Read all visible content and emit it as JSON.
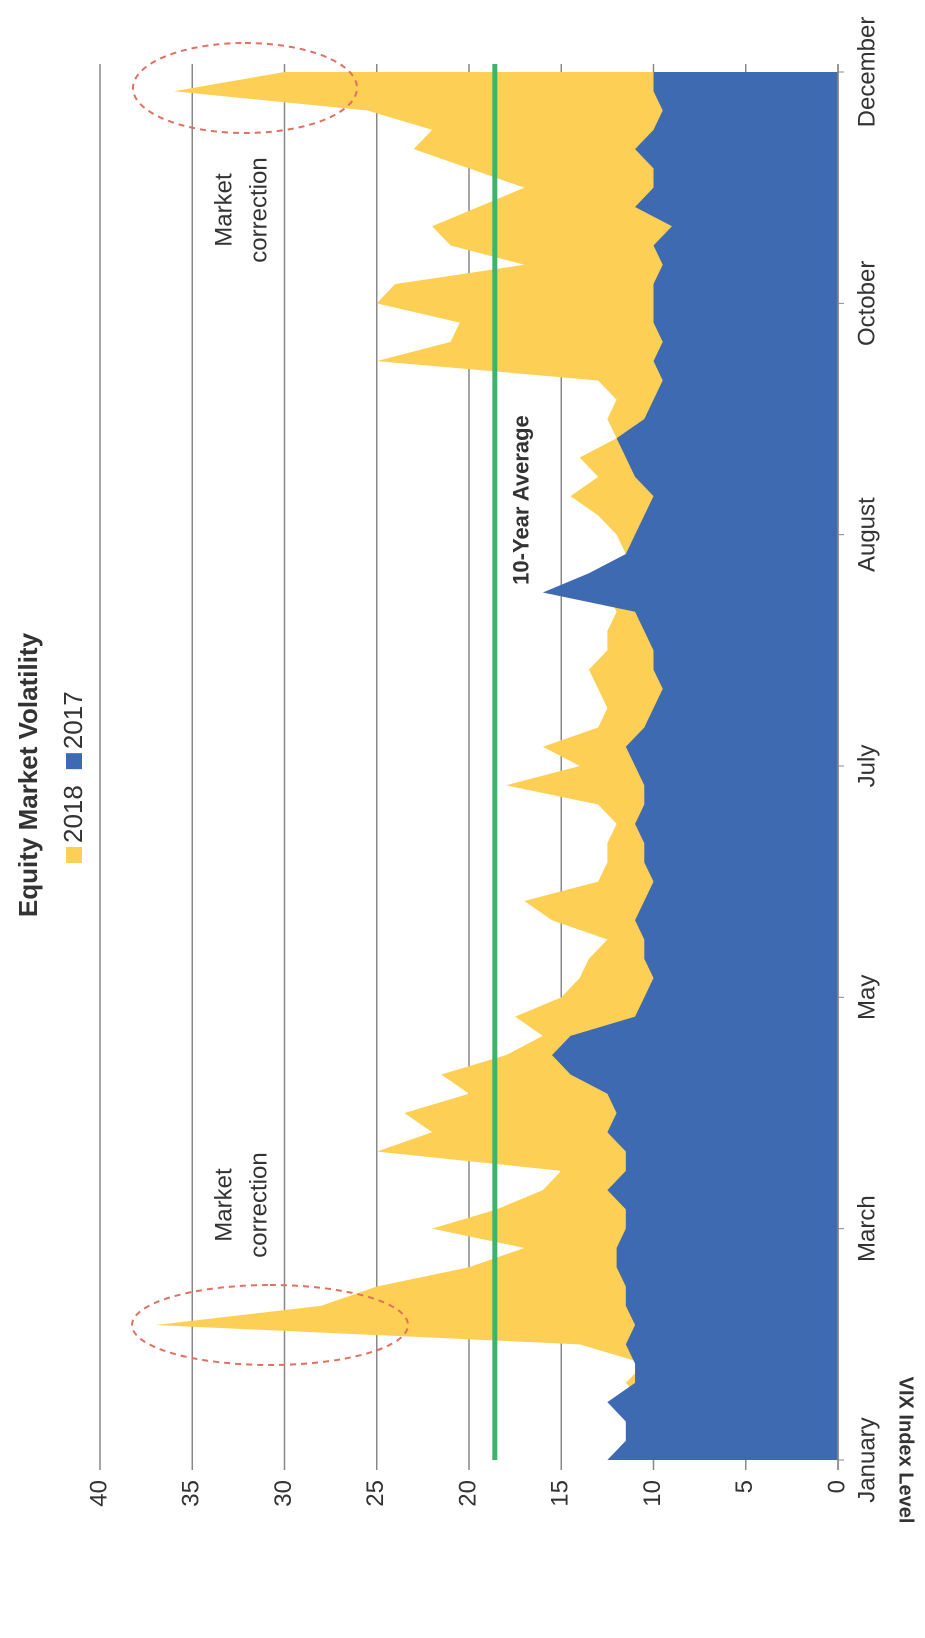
{
  "chart_data": {
    "type": "area",
    "title": "Equity Market Volatility",
    "y_label": "VIX Index Level",
    "categories": [
      "January",
      null,
      null,
      null,
      null,
      null,
      null,
      null,
      null,
      null,
      null,
      null,
      "March",
      null,
      null,
      null,
      null,
      null,
      null,
      null,
      null,
      null,
      null,
      null,
      "May",
      null,
      null,
      null,
      null,
      null,
      null,
      null,
      null,
      null,
      null,
      null,
      "July",
      null,
      null,
      null,
      null,
      null,
      null,
      null,
      null,
      null,
      null,
      null,
      "August",
      null,
      null,
      null,
      null,
      null,
      null,
      null,
      null,
      null,
      null,
      null,
      "October",
      null,
      null,
      null,
      null,
      null,
      null,
      null,
      null,
      null,
      null,
      null,
      "December"
    ],
    "series": [
      {
        "name": "2018",
        "color": "#fdd055",
        "values": [
          11,
          10.5,
          11,
          10.5,
          11.5,
          10.5,
          14,
          37,
          28,
          25,
          20,
          17,
          22,
          18.5,
          16,
          15,
          25,
          22,
          23.5,
          20,
          21.5,
          18,
          16,
          17.5,
          15,
          14,
          13.5,
          12.5,
          15.5,
          17,
          13,
          12.5,
          12.5,
          12,
          13,
          18,
          14,
          16,
          13,
          12.5,
          13,
          13.5,
          12.5,
          12.5,
          12,
          12.5,
          13,
          11.5,
          12,
          13,
          14.5,
          13,
          14,
          12,
          12.5,
          12,
          13,
          25,
          21,
          20.5,
          25,
          24,
          17,
          21,
          22,
          19.5,
          17,
          20,
          23,
          22,
          25.5,
          36,
          30
        ]
      },
      {
        "name": "2017",
        "color": "#3e6ab1",
        "values": [
          12.5,
          11.5,
          11.5,
          12.5,
          11,
          11,
          11.5,
          11,
          11.5,
          11.5,
          12,
          12,
          11.5,
          11.5,
          12.5,
          11.5,
          11.5,
          12.5,
          12,
          12.5,
          14.5,
          15.5,
          14.5,
          11,
          10.5,
          10,
          10.5,
          10.5,
          11,
          10.5,
          10,
          10.5,
          10.5,
          11,
          10.5,
          10.5,
          11,
          11.5,
          10.5,
          10,
          9.5,
          10,
          10,
          10.5,
          11,
          16,
          13.5,
          11.5,
          11,
          10.5,
          10,
          11,
          11.5,
          12,
          10.5,
          10,
          9.5,
          10,
          9.5,
          10,
          10,
          10,
          9.5,
          10,
          9,
          11,
          10,
          10,
          11,
          10,
          9.5,
          10,
          10
        ]
      }
    ],
    "reference_line": {
      "value": 18.6,
      "label": "10-Year Average",
      "color": "#3db36b"
    },
    "annotations": [
      {
        "lines": [
          "Market",
          "correction"
        ],
        "at": 7
      },
      {
        "lines": [
          "Market",
          "correction"
        ],
        "at": 71
      }
    ],
    "ylim": [
      0,
      40
    ],
    "yticks": [
      0,
      5,
      10,
      15,
      20,
      25,
      30,
      35,
      40
    ],
    "grid": true,
    "legend": "top"
  }
}
